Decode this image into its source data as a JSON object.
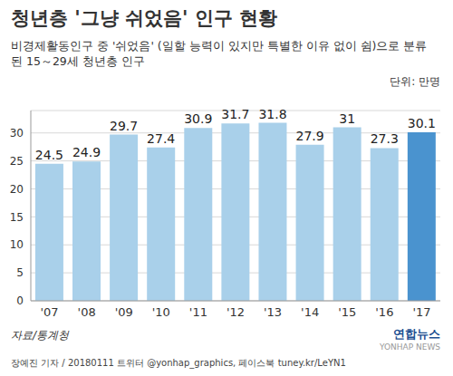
{
  "chart_data": {
    "type": "bar",
    "title": "청년층 '그냥 쉬었음' 인구 현황",
    "subtitle": "비경제활동인구 중 '쉬었음' (일할 능력이 있지만 특별한 이유 없이 쉼)으로 분류된 15～29세 청년층 인구",
    "unit": "단위: 만명",
    "source": "자료/통계청",
    "credit": "장예진 기자 / 20180111 트위터 @yonhap_graphics, 페이스북 tuney.kr/LeYN1",
    "logo": "연합뉴스",
    "watermark": "YONHAP NEWS",
    "categories": [
      "'07",
      "'08",
      "'09",
      "'10",
      "'11",
      "'12",
      "'13",
      "'14",
      "'15",
      "'16",
      "'17"
    ],
    "values": [
      24.5,
      24.9,
      29.7,
      27.4,
      30.9,
      31.7,
      31.8,
      27.9,
      31.0,
      27.3,
      30.1
    ],
    "colors": [
      "#a9d0ea",
      "#a9d0ea",
      "#a9d0ea",
      "#a9d0ea",
      "#a9d0ea",
      "#a9d0ea",
      "#a9d0ea",
      "#a9d0ea",
      "#a9d0ea",
      "#a9d0ea",
      "#4a93cf"
    ],
    "ylim": [
      0,
      34
    ],
    "yticks": [
      0,
      5,
      10,
      15,
      20,
      25,
      30
    ],
    "grid": true,
    "data_labels": true
  }
}
